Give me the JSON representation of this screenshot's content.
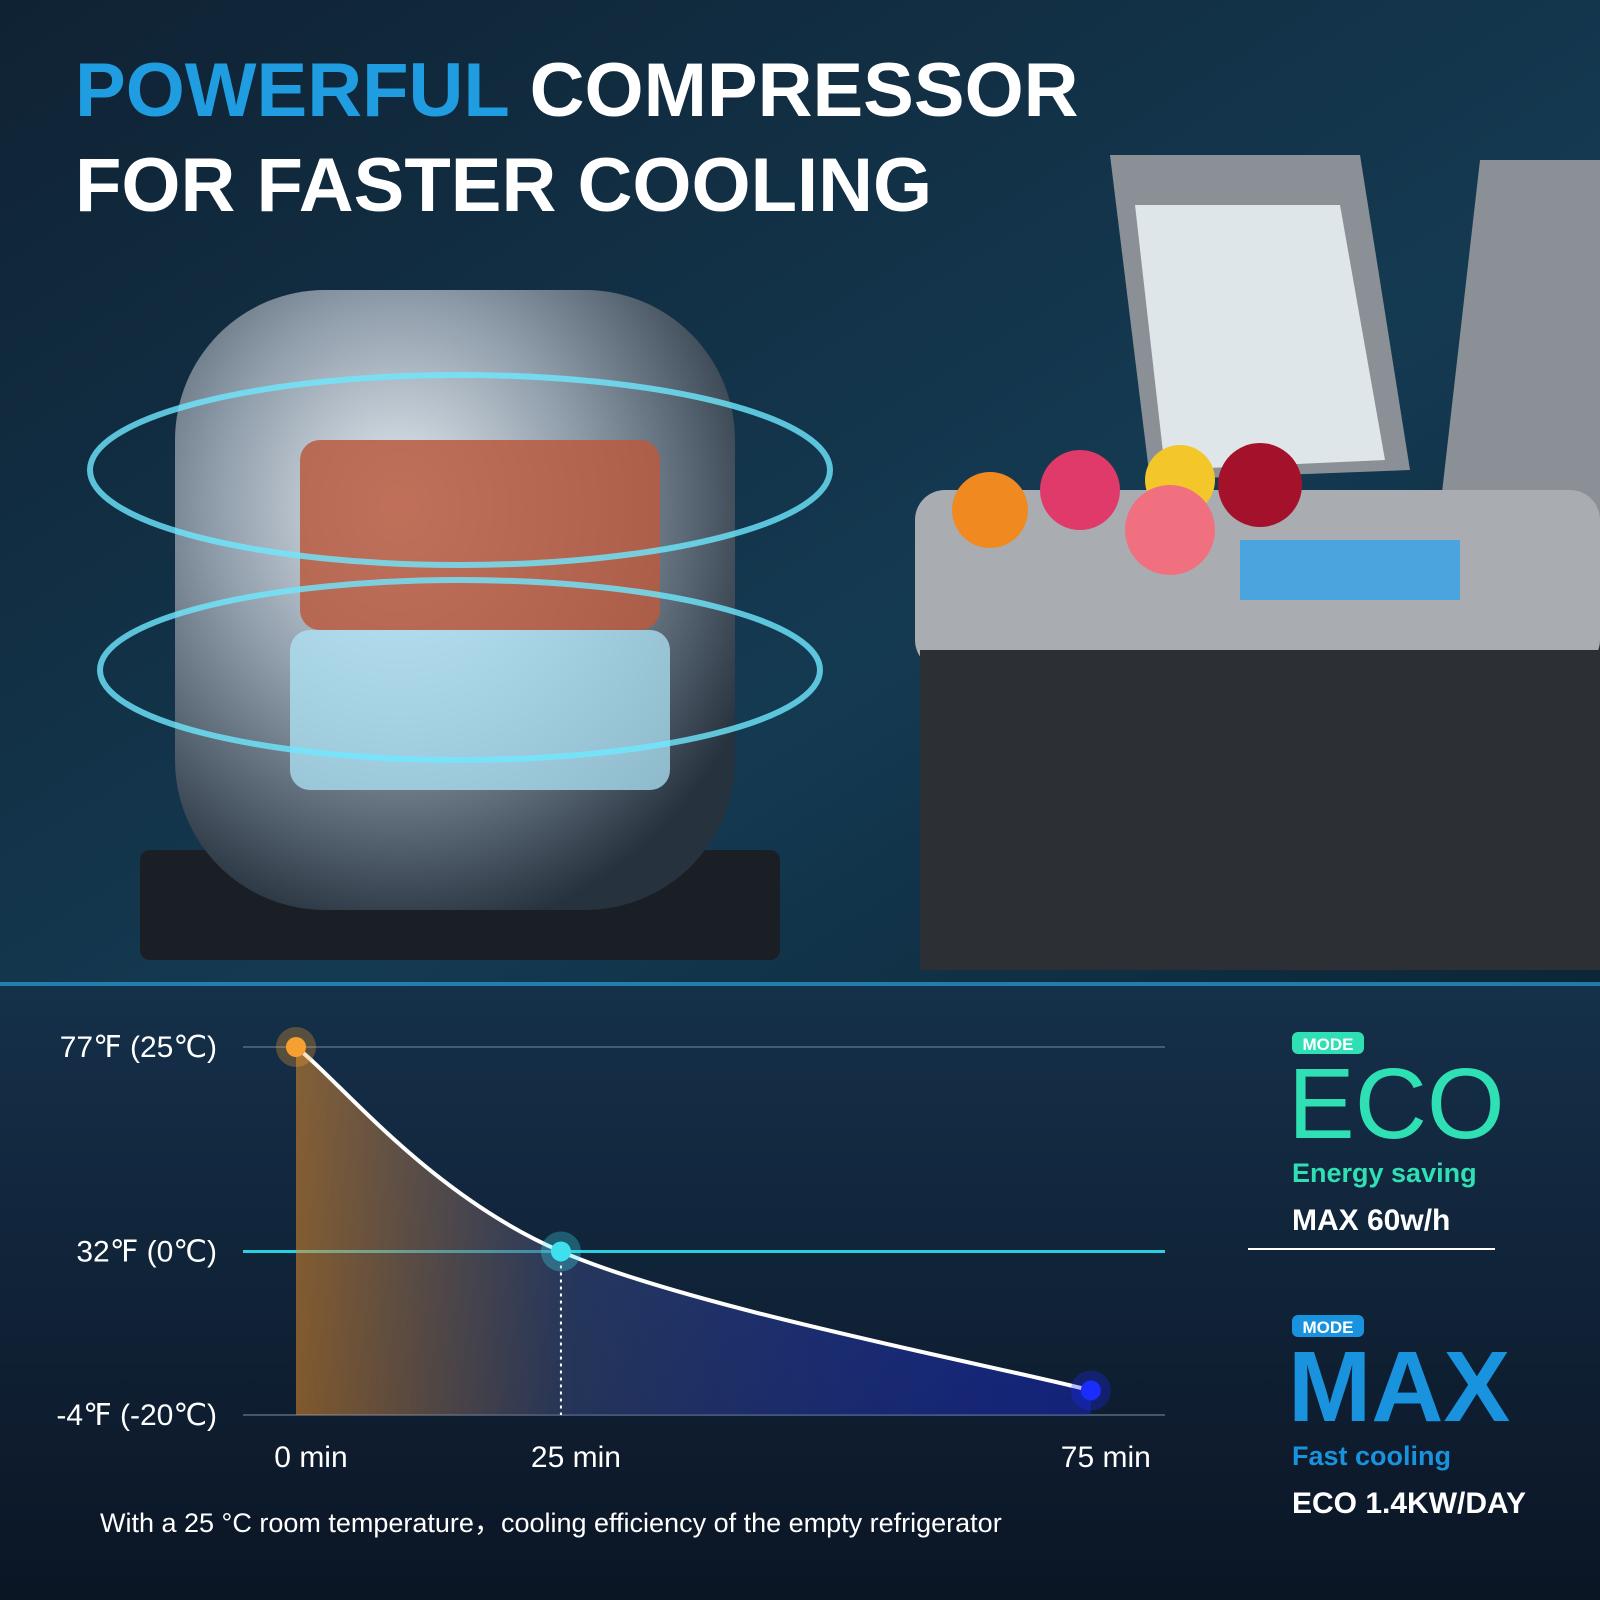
{
  "header": {
    "title_highlight": "POWERFUL",
    "title_rest": "COMPRESSOR",
    "title_line2": "FOR FASTER COOLING"
  },
  "chart_data": {
    "type": "line",
    "x": [
      0,
      25,
      75
    ],
    "series": [
      {
        "color": "#ffffff",
        "values": [
          25,
          0,
          -17
        ],
        "marker_colors": [
          "#f5a030",
          "#3fe0ee",
          "#1b2cff"
        ]
      }
    ],
    "xlim": [
      -5,
      82
    ],
    "xticks": [
      {
        "value": 0,
        "label": "0 min"
      },
      {
        "value": 25,
        "label": "25 min"
      },
      {
        "value": 75,
        "label": "75 min"
      }
    ],
    "ylim": [
      -20,
      25
    ],
    "yticks": [
      {
        "value": -20,
        "label": "-4℉ (-20℃)"
      },
      {
        "value": 0,
        "label": "32℉ (0℃)"
      },
      {
        "value": 25,
        "label": "77℉ (25℃)"
      }
    ],
    "grid": true
  },
  "modes": [
    {
      "badge": "MODE",
      "name": "ECO",
      "subtitle": "Energy saving",
      "spec": "MAX 60w/h",
      "color": "#2fe0b4"
    },
    {
      "badge": "MODE",
      "name": "MAX",
      "subtitle": "Fast cooling",
      "spec": "ECO 1.4KW/DAY",
      "color": "#1a93df"
    }
  ],
  "footnote": "With a 25 °C room temperature，cooling efficiency of the empty refrigerator"
}
